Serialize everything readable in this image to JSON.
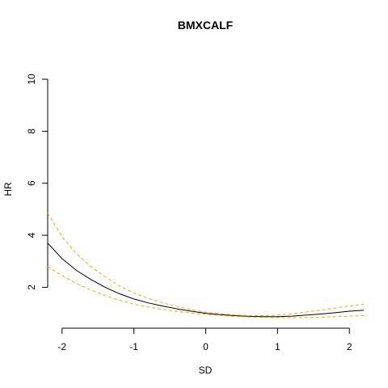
{
  "chart_data": {
    "type": "line",
    "title": "BMXCALF",
    "xlabel": "SD",
    "ylabel": "HR",
    "xlim": [
      -2.2,
      2.2
    ],
    "ylim": [
      0.8,
      10
    ],
    "x_ticks": [
      -2,
      -1,
      0,
      1,
      2
    ],
    "x_tick_labels": [
      "-2",
      "-1",
      "0",
      "1",
      "2"
    ],
    "y_ticks": [
      2,
      4,
      6,
      8,
      10
    ],
    "y_tick_labels": [
      "2",
      "4",
      "6",
      "8",
      "10"
    ],
    "grid": false,
    "series": [
      {
        "style": "solid",
        "color": "#000000",
        "x": [
          -2.2,
          -2.0,
          -1.8,
          -1.6,
          -1.4,
          -1.2,
          -1.0,
          -0.8,
          -0.6,
          -0.4,
          -0.2,
          0.0,
          0.2,
          0.4,
          0.6,
          0.8,
          1.0,
          1.2,
          1.4,
          1.6,
          1.8,
          2.0,
          2.2
        ],
        "y": [
          3.7,
          3.1,
          2.65,
          2.3,
          2.0,
          1.75,
          1.55,
          1.4,
          1.28,
          1.17,
          1.08,
          1.0,
          0.95,
          0.91,
          0.88,
          0.87,
          0.87,
          0.89,
          0.93,
          0.97,
          1.02,
          1.08,
          1.12
        ]
      },
      {
        "style": "dashed",
        "color": "#FFA500",
        "x": [
          -2.2,
          -2.0,
          -1.8,
          -1.6,
          -1.4,
          -1.2,
          -1.0,
          -0.8,
          -0.6,
          -0.4,
          -0.2,
          0.0,
          0.2,
          0.4,
          0.6,
          0.8,
          1.0,
          1.2,
          1.4,
          1.6,
          1.8,
          2.0,
          2.2
        ],
        "y": [
          4.85,
          3.95,
          3.3,
          2.8,
          2.4,
          2.05,
          1.78,
          1.57,
          1.4,
          1.26,
          1.14,
          1.04,
          0.98,
          0.94,
          0.91,
          0.91,
          0.93,
          0.98,
          1.05,
          1.12,
          1.2,
          1.28,
          1.35
        ]
      },
      {
        "style": "dashed",
        "color": "#FFA500",
        "x": [
          -2.2,
          -2.0,
          -1.8,
          -1.6,
          -1.4,
          -1.2,
          -1.0,
          -0.8,
          -0.6,
          -0.4,
          -0.2,
          0.0,
          0.2,
          0.4,
          0.6,
          0.8,
          1.0,
          1.2,
          1.4,
          1.6,
          1.8,
          2.0,
          2.2
        ],
        "y": [
          2.8,
          2.45,
          2.15,
          1.9,
          1.68,
          1.5,
          1.35,
          1.24,
          1.15,
          1.07,
          1.01,
          0.96,
          0.92,
          0.88,
          0.86,
          0.84,
          0.83,
          0.83,
          0.84,
          0.85,
          0.87,
          0.89,
          0.91
        ]
      }
    ]
  }
}
